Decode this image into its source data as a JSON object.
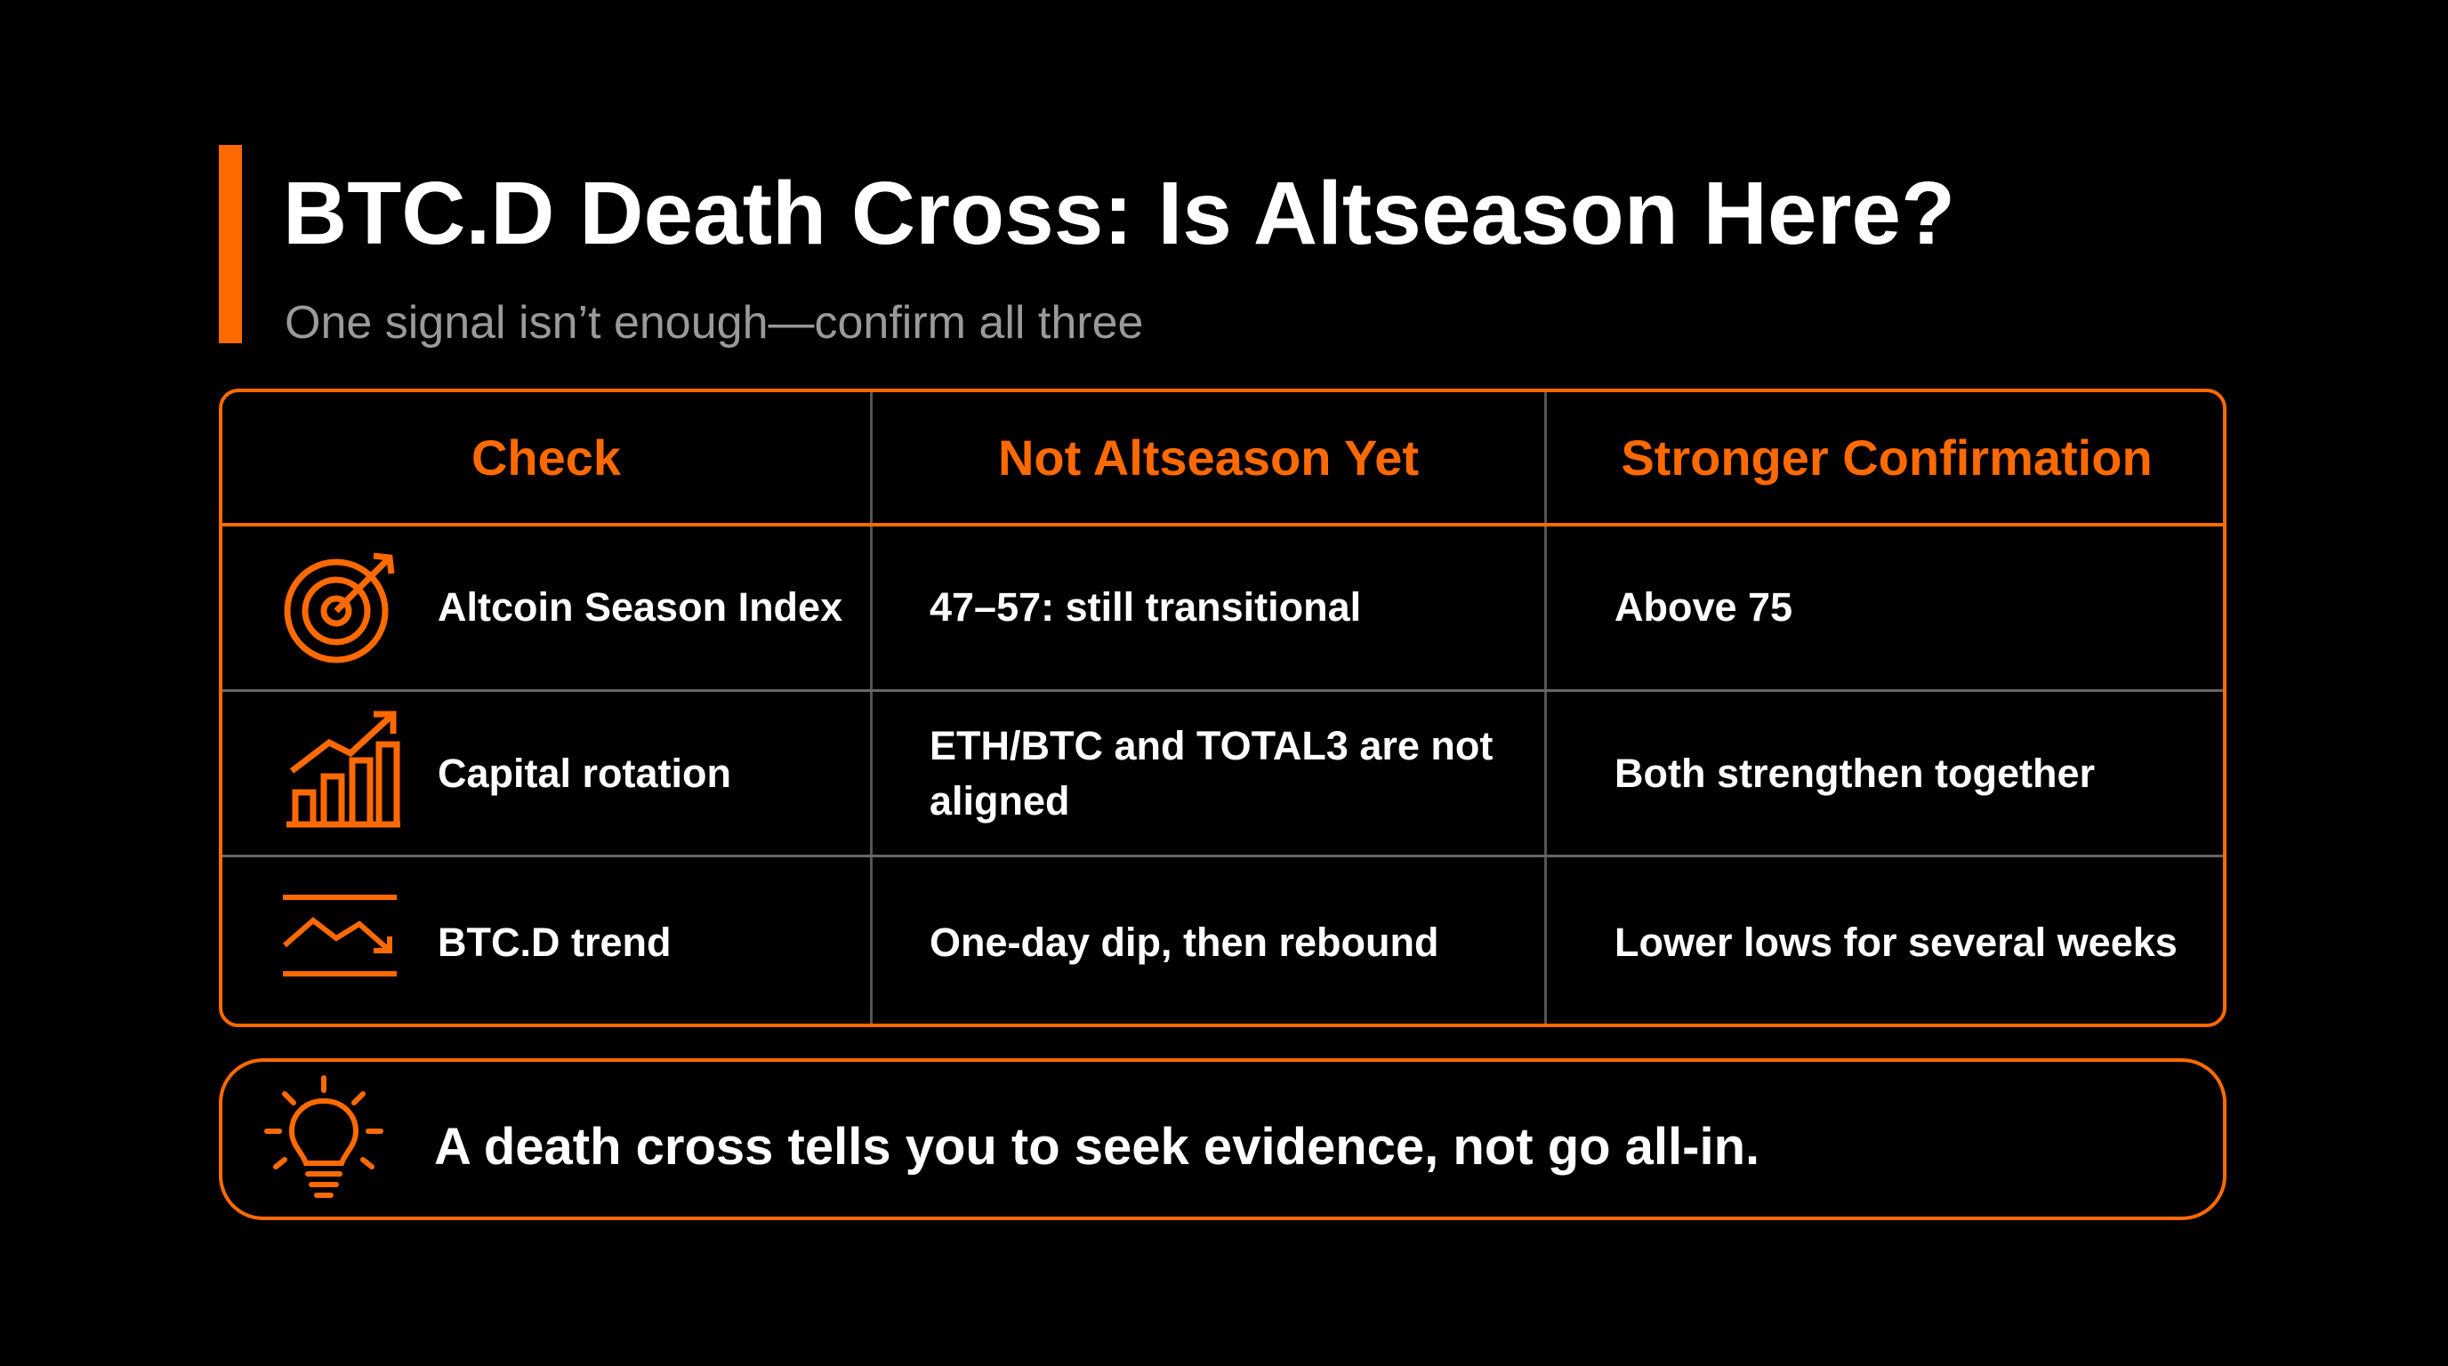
{
  "header": {
    "title": "BTC.D Death Cross: Is Altseason Here?",
    "subtitle": "One signal isn’t enough—confirm all three"
  },
  "table": {
    "columns": [
      "Check",
      "Not Altseason Yet",
      "Stronger Confirmation"
    ],
    "rows": [
      [
        "Altcoin Season Index",
        "47–57: still transitional",
        "Above 75"
      ],
      [
        "Capital rotation",
        "ETH/BTC and TOTAL3 are not aligned",
        "Both strengthen together"
      ],
      [
        "BTC.D trend",
        "One-day dip, then rebound",
        "Lower lows for several weeks"
      ]
    ]
  },
  "callout": {
    "text": "A death cross tells you to seek evidence, not go all-in."
  }
}
